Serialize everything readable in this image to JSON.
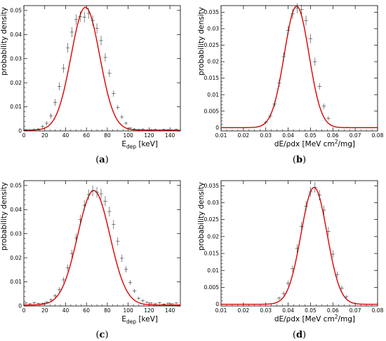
{
  "ylabel": "probability density",
  "chart_data": [
    {
      "type": "scatter",
      "caption": {
        "open": "(",
        "letter": "a",
        "close": ")"
      },
      "xlabel": {
        "pre": "E",
        "sub": "dep",
        "post": " [keV]"
      },
      "ylabel": "probability density",
      "xlim": [
        0,
        150
      ],
      "ylim": [
        0,
        0.052
      ],
      "xticks": [
        0,
        20,
        40,
        60,
        80,
        100,
        120,
        140
      ],
      "xtick_labels": [
        "0",
        "20",
        "40",
        "60",
        "80",
        "100",
        "120",
        "140"
      ],
      "yticks": [
        0,
        0.01,
        0.02,
        0.03,
        0.04,
        0.05
      ],
      "ytick_labels": [
        "0",
        "0.01",
        "0.02",
        "0.03",
        "0.04",
        "0.05"
      ],
      "fit": {
        "type": "gaussian",
        "mean": 59,
        "sigma": 13.7,
        "amplitude": 0.051,
        "baseline": 0.0003,
        "color": "#dd0000"
      },
      "x": [
        2,
        6,
        10,
        14,
        18,
        22,
        26,
        30,
        34,
        38,
        42,
        46,
        50,
        54,
        58,
        62,
        66,
        70,
        74,
        78,
        82,
        86,
        90,
        94,
        98,
        102,
        106,
        110,
        114,
        118,
        122,
        126,
        130,
        134,
        138,
        142,
        146
      ],
      "y": [
        0.0005,
        0.0004,
        0.0006,
        0.0008,
        0.0018,
        0.0032,
        0.0062,
        0.0118,
        0.0185,
        0.026,
        0.0345,
        0.041,
        0.0462,
        0.0475,
        0.0472,
        0.0488,
        0.0458,
        0.0425,
        0.0375,
        0.0305,
        0.024,
        0.0155,
        0.0098,
        0.0058,
        0.0032,
        0.0012,
        0.0008,
        0.0006,
        0.0007,
        0.0004,
        0.0005,
        0.0006,
        0.0004,
        0.0006,
        0.0005,
        0.0004,
        0.0006
      ],
      "err": [
        0.0004,
        0.0003,
        0.0004,
        0.0005,
        0.0007,
        0.0009,
        0.0011,
        0.0014,
        0.0016,
        0.0018,
        0.002,
        0.0021,
        0.0022,
        0.0022,
        0.0022,
        0.0022,
        0.0022,
        0.0021,
        0.002,
        0.0018,
        0.0016,
        0.0013,
        0.001,
        0.0008,
        0.0006,
        0.0004,
        0.0004,
        0.0003,
        0.0004,
        0.0003,
        0.0003,
        0.0004,
        0.0003,
        0.0004,
        0.0003,
        0.0003,
        0.0004
      ]
    },
    {
      "type": "scatter",
      "caption": {
        "open": "(",
        "letter": "b",
        "close": ")"
      },
      "xlabel": {
        "pre": "dE/ρdx [MeV cm",
        "sup": "2",
        "post": "/mg]"
      },
      "ylabel": "probability density",
      "xlim": [
        0.01,
        0.08
      ],
      "ylim": [
        -0.001,
        0.037
      ],
      "xticks": [
        0.01,
        0.02,
        0.03,
        0.04,
        0.05,
        0.06,
        0.07,
        0.08
      ],
      "xtick_labels": [
        "0.01",
        "0.02",
        "0.03",
        "0.04",
        "0.05",
        "0.06",
        "0.07",
        "0.08"
      ],
      "yticks": [
        0,
        0.005,
        0.01,
        0.015,
        0.02,
        0.025,
        0.03,
        0.035
      ],
      "ytick_labels": [
        "0",
        "0.005",
        "0.01",
        "0.015",
        "0.02",
        "0.025",
        "0.03",
        "0.035"
      ],
      "fit": {
        "type": "gaussian",
        "mean": 0.0438,
        "sigma": 0.0055,
        "amplitude": 0.0368,
        "baseline": 0,
        "color": "#dd0000"
      },
      "x": [
        0.03,
        0.032,
        0.034,
        0.036,
        0.038,
        0.04,
        0.042,
        0.044,
        0.046,
        0.048,
        0.05,
        0.052,
        0.054,
        0.056,
        0.058
      ],
      "y": [
        0.0016,
        0.0035,
        0.0072,
        0.0135,
        0.0215,
        0.0295,
        0.0345,
        0.0362,
        0.0358,
        0.0325,
        0.027,
        0.02,
        0.0125,
        0.0065,
        0.0028
      ],
      "err": [
        0.0005,
        0.0007,
        0.0009,
        0.0011,
        0.0013,
        0.0014,
        0.0015,
        0.0015,
        0.0015,
        0.0015,
        0.0014,
        0.0012,
        0.001,
        0.0008,
        0.0006
      ]
    },
    {
      "type": "scatter",
      "caption": {
        "open": "(",
        "letter": "c",
        "close": ")"
      },
      "xlabel": {
        "pre": "E",
        "sub": "dep",
        "post": " [keV]"
      },
      "ylabel": "probability density",
      "xlim": [
        0,
        150
      ],
      "ylim": [
        0,
        0.052
      ],
      "xticks": [
        0,
        20,
        40,
        60,
        80,
        100,
        120,
        140
      ],
      "xtick_labels": [
        "0",
        "20",
        "40",
        "60",
        "80",
        "100",
        "120",
        "140"
      ],
      "yticks": [
        0,
        0.01,
        0.02,
        0.03,
        0.04,
        0.05
      ],
      "ytick_labels": [
        "0",
        "0.01",
        "0.02",
        "0.03",
        "0.04",
        "0.05"
      ],
      "fit": {
        "type": "gaussian",
        "mean": 67,
        "sigma": 15.5,
        "amplitude": 0.0475,
        "baseline": 0.0004,
        "color": "#dd0000"
      },
      "x": [
        2,
        6,
        10,
        14,
        18,
        22,
        26,
        30,
        34,
        38,
        42,
        46,
        50,
        54,
        58,
        62,
        66,
        70,
        74,
        78,
        82,
        86,
        90,
        94,
        98,
        102,
        106,
        110,
        114,
        118,
        122,
        126,
        130,
        134,
        138,
        142,
        146
      ],
      "y": [
        0.0012,
        0.0009,
        0.0013,
        0.001,
        0.0011,
        0.0016,
        0.0026,
        0.0042,
        0.0068,
        0.0108,
        0.0158,
        0.0218,
        0.0282,
        0.0358,
        0.0418,
        0.0462,
        0.0478,
        0.0472,
        0.0465,
        0.0435,
        0.0392,
        0.0338,
        0.0268,
        0.0198,
        0.0152,
        0.0098,
        0.0062,
        0.0032,
        0.0022,
        0.0015,
        0.0012,
        0.0009,
        0.0013,
        0.0008,
        0.0011,
        0.0009,
        0.0012
      ],
      "err": [
        0.0005,
        0.0004,
        0.0005,
        0.0004,
        0.0004,
        0.0005,
        0.0006,
        0.0008,
        0.001,
        0.0012,
        0.0014,
        0.0016,
        0.0018,
        0.002,
        0.0021,
        0.0022,
        0.0022,
        0.0022,
        0.0022,
        0.0021,
        0.002,
        0.0019,
        0.0017,
        0.0015,
        0.0013,
        0.001,
        0.0008,
        0.0006,
        0.0005,
        0.0004,
        0.0004,
        0.0004,
        0.0004,
        0.0003,
        0.0004,
        0.0003,
        0.0004
      ]
    },
    {
      "type": "scatter",
      "caption": {
        "open": "(",
        "letter": "d",
        "close": ")"
      },
      "xlabel": {
        "pre": "dE/ρdx [MeV cm",
        "sup": "2",
        "post": "/mg]"
      },
      "ylabel": "probability density",
      "xlim": [
        0.01,
        0.08
      ],
      "ylim": [
        -0.0005,
        0.0365
      ],
      "xticks": [
        0.01,
        0.02,
        0.03,
        0.04,
        0.05,
        0.06,
        0.07,
        0.08
      ],
      "xtick_labels": [
        "0.01",
        "0.02",
        "0.03",
        "0.04",
        "0.05",
        "0.06",
        "0.07",
        "0.08"
      ],
      "yticks": [
        0,
        0.005,
        0.01,
        0.015,
        0.02,
        0.025,
        0.03,
        0.035
      ],
      "ytick_labels": [
        "0",
        "0.005",
        "0.01",
        "0.015",
        "0.02",
        "0.025",
        "0.03",
        "0.035"
      ],
      "fit": {
        "type": "gaussian",
        "mean": 0.0516,
        "sigma": 0.0058,
        "amplitude": 0.0345,
        "baseline": 0,
        "color": "#dd0000"
      },
      "x": [
        0.036,
        0.038,
        0.04,
        0.042,
        0.044,
        0.046,
        0.048,
        0.05,
        0.052,
        0.054,
        0.056,
        0.058,
        0.06,
        0.062,
        0.064,
        0.066
      ],
      "y": [
        0.0018,
        0.0032,
        0.0062,
        0.0105,
        0.0165,
        0.023,
        0.029,
        0.0332,
        0.0345,
        0.0322,
        0.0278,
        0.0215,
        0.0148,
        0.0088,
        0.0048,
        0.0022
      ],
      "err": [
        0.0005,
        0.0006,
        0.0008,
        0.001,
        0.0012,
        0.0013,
        0.0014,
        0.0015,
        0.0015,
        0.0015,
        0.0014,
        0.0013,
        0.0011,
        0.0009,
        0.0007,
        0.0005
      ]
    }
  ]
}
